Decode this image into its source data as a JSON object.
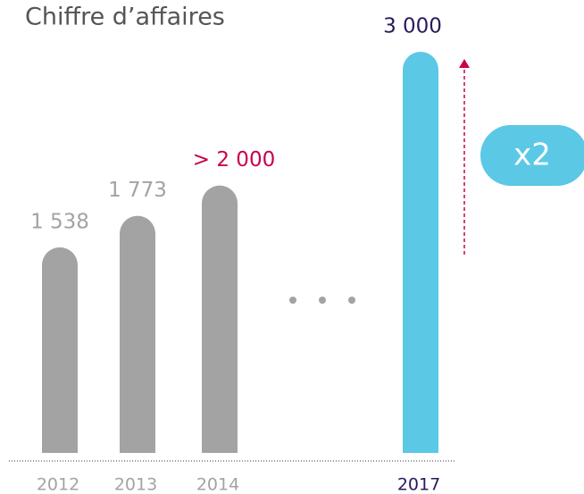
{
  "chart_data": {
    "type": "bar",
    "title": "Chiffre d’affaires",
    "categories": [
      "2012",
      "2013",
      "2014",
      "2017"
    ],
    "values": [
      1538,
      1773,
      2000,
      3000
    ],
    "value_labels": [
      "1 538",
      "1 773",
      "> 2 000",
      "3 000"
    ],
    "colors": [
      "#a3a3a3",
      "#a3a3a3",
      "#a3a3a3",
      "#5bc8e6"
    ],
    "label_colors": [
      "#a3a3a3",
      "#a3a3a3",
      "#c8004f",
      "#2a1a5e"
    ],
    "category_colors": [
      "#a3a3a3",
      "#a3a3a3",
      "#a3a3a3",
      "#2a1a5e"
    ],
    "annotation": "x2"
  }
}
